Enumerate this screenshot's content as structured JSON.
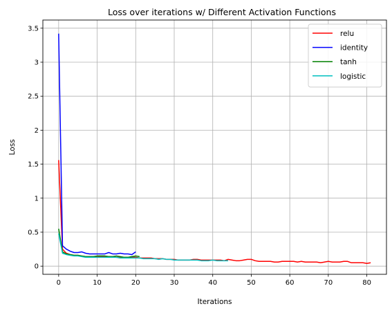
{
  "chart_data": {
    "type": "line",
    "title": "Loss over iterations w/ Different Activation Functions",
    "xlabel": "Iterations",
    "ylabel": "Loss",
    "xlim": [
      -4.1,
      85.1
    ],
    "ylim": [
      -0.12,
      3.62
    ],
    "xticks": [
      "0",
      "10",
      "20",
      "30",
      "40",
      "50",
      "60",
      "70",
      "80"
    ],
    "yticks": [
      "0",
      "0.5",
      "1",
      "1.5",
      "2",
      "2.5",
      "3",
      "3.5"
    ],
    "grid": true,
    "legend_position": "top-right",
    "series": [
      {
        "name": "relu",
        "color": "#ff0000",
        "values": [
          1.56,
          0.25,
          0.19,
          0.17,
          0.16,
          0.16,
          0.15,
          0.14,
          0.14,
          0.14,
          0.14,
          0.14,
          0.14,
          0.14,
          0.14,
          0.13,
          0.13,
          0.13,
          0.13,
          0.13,
          0.13,
          0.12,
          0.12,
          0.12,
          0.12,
          0.11,
          0.11,
          0.11,
          0.1,
          0.1,
          0.1,
          0.09,
          0.09,
          0.09,
          0.09,
          0.1,
          0.1,
          0.09,
          0.09,
          0.09,
          0.09,
          0.09,
          0.09,
          0.08,
          0.1,
          0.09,
          0.08,
          0.08,
          0.09,
          0.1,
          0.1,
          0.08,
          0.07,
          0.07,
          0.07,
          0.07,
          0.06,
          0.06,
          0.07,
          0.07,
          0.07,
          0.07,
          0.06,
          0.07,
          0.06,
          0.06,
          0.06,
          0.06,
          0.05,
          0.06,
          0.07,
          0.06,
          0.06,
          0.06,
          0.07,
          0.07,
          0.05,
          0.05,
          0.05,
          0.05,
          0.04,
          0.05
        ]
      },
      {
        "name": "identity",
        "color": "#0000ff",
        "values": [
          3.42,
          0.3,
          0.25,
          0.22,
          0.2,
          0.2,
          0.21,
          0.19,
          0.18,
          0.18,
          0.18,
          0.18,
          0.18,
          0.2,
          0.18,
          0.18,
          0.19,
          0.18,
          0.18,
          0.17,
          0.21
        ]
      },
      {
        "name": "tanh",
        "color": "#008000",
        "values": [
          0.55,
          0.21,
          0.18,
          0.17,
          0.16,
          0.16,
          0.15,
          0.14,
          0.14,
          0.14,
          0.15,
          0.15,
          0.15,
          0.14,
          0.14,
          0.15,
          0.14,
          0.13,
          0.13,
          0.14,
          0.15,
          0.14
        ]
      },
      {
        "name": "logistic",
        "color": "#00bfbf",
        "values": [
          0.48,
          0.19,
          0.17,
          0.16,
          0.15,
          0.15,
          0.14,
          0.13,
          0.13,
          0.13,
          0.13,
          0.13,
          0.13,
          0.13,
          0.13,
          0.13,
          0.12,
          0.12,
          0.12,
          0.12,
          0.12,
          0.12,
          0.11,
          0.11,
          0.11,
          0.11,
          0.1,
          0.11,
          0.1,
          0.1,
          0.09,
          0.09,
          0.09,
          0.09,
          0.09,
          0.09,
          0.09,
          0.08,
          0.08,
          0.08,
          0.09,
          0.08,
          0.08,
          0.08,
          0.08
        ]
      }
    ]
  }
}
